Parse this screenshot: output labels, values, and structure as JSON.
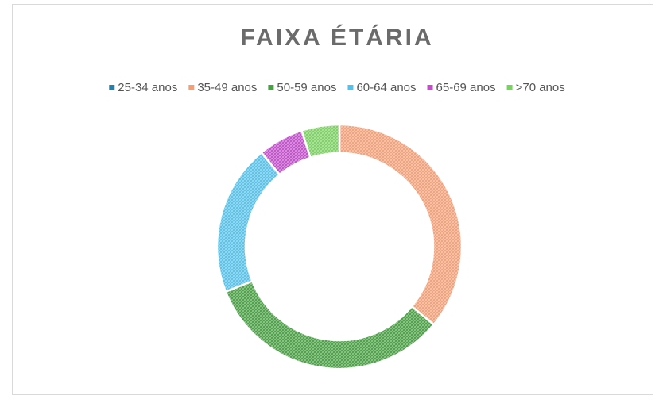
{
  "chart_data": {
    "type": "donut",
    "title": "FAIXA ÉTÁRIA",
    "categories": [
      "25-34 anos",
      "35-49 anos",
      "50-59 anos",
      "60-64 anos",
      "65-69 anos",
      ">70 anos"
    ],
    "values": [
      0,
      36,
      33,
      20,
      6,
      5
    ],
    "colors": [
      "#2c7ea6",
      "#f0a079",
      "#4a9e45",
      "#58c0e6",
      "#c050c8",
      "#7ccf63"
    ],
    "legend": "top"
  }
}
